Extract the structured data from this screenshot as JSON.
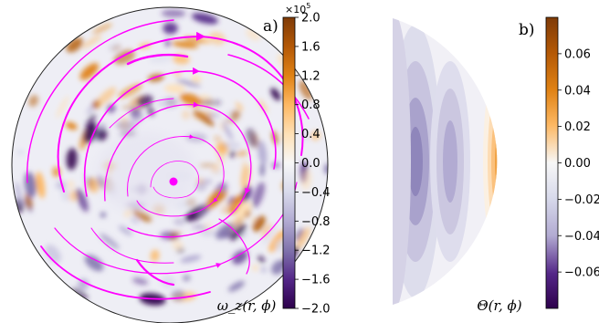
{
  "chart_data": [
    {
      "type": "heatmap",
      "panel_label": "a)",
      "quantity_label": "ω_z(r, ϕ)",
      "colorbar": {
        "multiplier": "×10",
        "multiplier_exponent": "5",
        "ticks": [
          "2.0",
          "1.6",
          "1.2",
          "0.8",
          "0.4",
          "0.0",
          "−0.4",
          "−0.8",
          "−1.2",
          "−1.6",
          "−2.0"
        ],
        "tick_values": [
          2.0,
          1.6,
          1.2,
          0.8,
          0.4,
          0.0,
          -0.4,
          -0.8,
          -1.2,
          -1.6,
          -2.0
        ],
        "range": [
          -2.0,
          2.0
        ],
        "colormap": "PuOr_r"
      },
      "overlay": "streamlines",
      "overlay_color": "#ff00ff",
      "domain": "full disk"
    },
    {
      "type": "heatmap",
      "panel_label": "b)",
      "quantity_label": "Θ(r, ϕ)",
      "colorbar": {
        "ticks": [
          "0.06",
          "0.04",
          "0.02",
          "0.00",
          "−0.02",
          "−0.04",
          "−0.06"
        ],
        "tick_values": [
          0.06,
          0.04,
          0.02,
          0.0,
          -0.02,
          -0.04,
          -0.06
        ],
        "range": [
          -0.08,
          0.08
        ],
        "colormap": "PuOr_r"
      },
      "domain": "right half disk"
    }
  ]
}
